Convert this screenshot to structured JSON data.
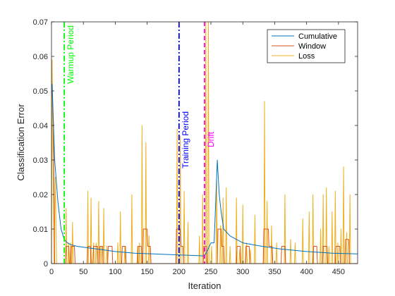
{
  "colors": {
    "cumulative": "#0072BD",
    "window": "#D95319",
    "loss": "#EDB120",
    "warmup": "#00FF00",
    "training": "#0000FF",
    "drift": "#FF00FF",
    "axis": "#262626"
  },
  "chart_data": {
    "type": "line",
    "title": "",
    "xlabel": "Iteration",
    "ylabel": "Classification Error",
    "xlim": [
      0,
      480
    ],
    "ylim": [
      0,
      0.07
    ],
    "xticks": [
      0,
      50,
      100,
      150,
      200,
      250,
      300,
      350,
      400,
      450
    ],
    "yticks": [
      0,
      0.01,
      0.02,
      0.03,
      0.04,
      0.05,
      0.06,
      0.07
    ],
    "grid": false,
    "legend_position": "top-right",
    "series": [
      {
        "name": "Cumulative",
        "points": [
          [
            1,
            0.052
          ],
          [
            5,
            0.03
          ],
          [
            10,
            0.018
          ],
          [
            15,
            0.01
          ],
          [
            20,
            0.007
          ],
          [
            25,
            0.006
          ],
          [
            30,
            0.0055
          ],
          [
            40,
            0.005
          ],
          [
            60,
            0.0045
          ],
          [
            80,
            0.004
          ],
          [
            100,
            0.0035
          ],
          [
            130,
            0.003
          ],
          [
            160,
            0.0028
          ],
          [
            200,
            0.0025
          ],
          [
            230,
            0.0023
          ],
          [
            240,
            0.0022
          ],
          [
            245,
            0.004
          ],
          [
            250,
            0.006
          ],
          [
            255,
            0.006
          ],
          [
            260,
            0.03
          ],
          [
            263,
            0.02
          ],
          [
            266,
            0.015
          ],
          [
            270,
            0.01
          ],
          [
            280,
            0.008
          ],
          [
            300,
            0.006
          ],
          [
            330,
            0.005
          ],
          [
            360,
            0.0042
          ],
          [
            400,
            0.0035
          ],
          [
            440,
            0.003
          ],
          [
            480,
            0.0028
          ]
        ]
      },
      {
        "name": "Window",
        "points": [
          [
            1,
            0.05
          ],
          [
            3,
            0.04
          ],
          [
            5,
            0.0
          ],
          [
            22,
            0.0
          ],
          [
            23,
            0.005
          ],
          [
            27,
            0.005
          ],
          [
            28,
            0.0
          ],
          [
            30,
            0.0
          ],
          [
            31,
            0.005
          ],
          [
            36,
            0.005
          ],
          [
            37,
            0.0
          ],
          [
            56,
            0.0
          ],
          [
            57,
            0.005
          ],
          [
            61,
            0.005
          ],
          [
            62,
            0.0
          ],
          [
            65,
            0.0
          ],
          [
            66,
            0.005
          ],
          [
            72,
            0.005
          ],
          [
            73,
            0.0
          ],
          [
            75,
            0.0
          ],
          [
            76,
            0.005
          ],
          [
            80,
            0.005
          ],
          [
            81,
            0.0
          ],
          [
            88,
            0.0
          ],
          [
            89,
            0.005
          ],
          [
            95,
            0.005
          ],
          [
            96,
            0.0
          ],
          [
            110,
            0.0
          ],
          [
            111,
            0.005
          ],
          [
            116,
            0.005
          ],
          [
            117,
            0.0
          ],
          [
            135,
            0.0
          ],
          [
            136,
            0.005
          ],
          [
            141,
            0.005
          ],
          [
            142,
            0.0
          ],
          [
            143,
            0.0
          ],
          [
            144,
            0.01
          ],
          [
            150,
            0.01
          ],
          [
            151,
            0.005
          ],
          [
            155,
            0.005
          ],
          [
            156,
            0.0
          ],
          [
            195,
            0.0
          ],
          [
            196,
            0.01
          ],
          [
            202,
            0.01
          ],
          [
            203,
            0.005
          ],
          [
            206,
            0.005
          ],
          [
            207,
            0.0
          ],
          [
            238,
            0.0
          ],
          [
            239,
            0.005
          ],
          [
            243,
            0.005
          ],
          [
            244,
            0.0
          ],
          [
            260,
            0.0
          ],
          [
            261,
            0.01
          ],
          [
            266,
            0.01
          ],
          [
            267,
            0.005
          ],
          [
            270,
            0.005
          ],
          [
            271,
            0.0
          ],
          [
            290,
            0.0
          ],
          [
            291,
            0.005
          ],
          [
            296,
            0.005
          ],
          [
            297,
            0.0
          ],
          [
            304,
            0.0
          ],
          [
            305,
            0.005
          ],
          [
            310,
            0.005
          ],
          [
            311,
            0.0
          ],
          [
            332,
            0.0
          ],
          [
            333,
            0.01
          ],
          [
            340,
            0.01
          ],
          [
            341,
            0.005
          ],
          [
            346,
            0.005
          ],
          [
            347,
            0.0
          ],
          [
            360,
            0.0
          ],
          [
            361,
            0.005
          ],
          [
            366,
            0.005
          ],
          [
            367,
            0.0
          ],
          [
            410,
            0.0
          ],
          [
            411,
            0.005
          ],
          [
            416,
            0.005
          ],
          [
            417,
            0.0
          ],
          [
            425,
            0.0
          ],
          [
            426,
            0.005
          ],
          [
            432,
            0.005
          ],
          [
            433,
            0.0
          ],
          [
            445,
            0.0
          ],
          [
            446,
            0.005
          ],
          [
            452,
            0.005
          ],
          [
            453,
            0.0
          ],
          [
            460,
            0.0
          ],
          [
            461,
            0.007
          ],
          [
            466,
            0.007
          ],
          [
            467,
            0.0
          ],
          [
            480,
            0.0
          ]
        ]
      },
      {
        "name": "Loss",
        "points": [
          [
            0,
            0.0
          ],
          [
            1,
            0.059
          ],
          [
            3,
            0.02
          ],
          [
            4,
            0.0
          ],
          [
            6,
            0.025
          ],
          [
            8,
            0.0
          ],
          [
            22,
            0.0
          ],
          [
            23,
            0.016
          ],
          [
            24,
            0.0
          ],
          [
            26,
            0.0
          ],
          [
            27,
            0.006
          ],
          [
            28,
            0.0
          ],
          [
            29,
            0.0
          ],
          [
            30,
            0.006
          ],
          [
            31,
            0.0
          ],
          [
            32,
            0.0
          ],
          [
            33,
            0.012
          ],
          [
            34,
            0.0
          ],
          [
            56,
            0.0
          ],
          [
            57,
            0.021
          ],
          [
            58,
            0.0
          ],
          [
            61,
            0.0
          ],
          [
            62,
            0.019
          ],
          [
            63,
            0.0
          ],
          [
            65,
            0.0
          ],
          [
            66,
            0.006
          ],
          [
            67,
            0.0
          ],
          [
            69,
            0.0
          ],
          [
            70,
            0.006
          ],
          [
            71,
            0.0
          ],
          [
            73,
            0.0
          ],
          [
            74,
            0.018
          ],
          [
            75,
            0.0
          ],
          [
            77,
            0.0
          ],
          [
            78,
            0.005
          ],
          [
            79,
            0.0
          ],
          [
            81,
            0.0
          ],
          [
            82,
            0.016
          ],
          [
            83,
            0.0
          ],
          [
            86,
            0.0
          ],
          [
            87,
            0.005
          ],
          [
            88,
            0.0
          ],
          [
            103,
            0.0
          ],
          [
            104,
            0.006
          ],
          [
            105,
            0.0
          ],
          [
            107,
            0.0
          ],
          [
            108,
            0.015
          ],
          [
            109,
            0.0
          ],
          [
            114,
            0.0
          ],
          [
            115,
            0.005
          ],
          [
            116,
            0.0
          ],
          [
            125,
            0.0
          ],
          [
            126,
            0.02
          ],
          [
            127,
            0.0
          ],
          [
            134,
            0.0
          ],
          [
            135,
            0.005
          ],
          [
            136,
            0.0
          ],
          [
            137,
            0.0
          ],
          [
            138,
            0.006
          ],
          [
            139,
            0.0
          ],
          [
            141,
            0.0
          ],
          [
            142,
            0.04
          ],
          [
            143,
            0.0
          ],
          [
            147,
            0.0
          ],
          [
            148,
            0.035
          ],
          [
            149,
            0.0
          ],
          [
            152,
            0.0
          ],
          [
            153,
            0.008
          ],
          [
            154,
            0.0
          ],
          [
            196,
            0.0
          ],
          [
            197,
            0.039
          ],
          [
            198,
            0.0
          ],
          [
            201,
            0.0
          ],
          [
            202,
            0.037
          ],
          [
            203,
            0.0
          ],
          [
            207,
            0.0
          ],
          [
            208,
            0.021
          ],
          [
            209,
            0.0
          ],
          [
            213,
            0.0
          ],
          [
            214,
            0.012
          ],
          [
            215,
            0.0
          ],
          [
            231,
            0.0
          ],
          [
            232,
            0.008
          ],
          [
            233,
            0.0
          ],
          [
            236,
            0.0
          ],
          [
            237,
            0.02
          ],
          [
            238,
            0.0
          ],
          [
            241,
            0.0
          ],
          [
            242,
            0.07
          ],
          [
            243,
            0.0
          ],
          [
            245,
            0.0
          ],
          [
            246,
            0.07
          ],
          [
            247,
            0.0
          ],
          [
            250,
            0.0
          ],
          [
            251,
            0.005
          ],
          [
            252,
            0.0
          ],
          [
            258,
            0.0
          ],
          [
            259,
            0.024
          ],
          [
            260,
            0.0
          ],
          [
            264,
            0.0
          ],
          [
            265,
            0.011
          ],
          [
            266,
            0.0
          ],
          [
            268,
            0.0
          ],
          [
            269,
            0.019
          ],
          [
            270,
            0.0
          ],
          [
            273,
            0.0
          ],
          [
            274,
            0.022
          ],
          [
            275,
            0.0
          ],
          [
            279,
            0.0
          ],
          [
            280,
            0.005
          ],
          [
            281,
            0.0
          ],
          [
            289,
            0.0
          ],
          [
            290,
            0.019
          ],
          [
            291,
            0.0
          ],
          [
            294,
            0.0
          ],
          [
            295,
            0.004
          ],
          [
            296,
            0.0
          ],
          [
            299,
            0.0
          ],
          [
            300,
            0.017
          ],
          [
            301,
            0.0
          ],
          [
            305,
            0.0
          ],
          [
            306,
            0.006
          ],
          [
            307,
            0.0
          ],
          [
            311,
            0.0
          ],
          [
            312,
            0.004
          ],
          [
            313,
            0.0
          ],
          [
            318,
            0.0
          ],
          [
            319,
            0.014
          ],
          [
            320,
            0.0
          ],
          [
            333,
            0.0
          ],
          [
            334,
            0.047
          ],
          [
            335,
            0.0
          ],
          [
            337,
            0.0
          ],
          [
            338,
            0.018
          ],
          [
            339,
            0.0
          ],
          [
            344,
            0.0
          ],
          [
            345,
            0.011
          ],
          [
            346,
            0.0
          ],
          [
            352,
            0.0
          ],
          [
            353,
            0.006
          ],
          [
            354,
            0.0
          ],
          [
            365,
            0.0
          ],
          [
            366,
            0.02
          ],
          [
            367,
            0.0
          ],
          [
            374,
            0.0
          ],
          [
            375,
            0.007
          ],
          [
            376,
            0.0
          ],
          [
            381,
            0.0
          ],
          [
            382,
            0.006
          ],
          [
            383,
            0.0
          ],
          [
            393,
            0.0
          ],
          [
            394,
            0.013
          ],
          [
            395,
            0.0
          ],
          [
            403,
            0.0
          ],
          [
            404,
            0.015
          ],
          [
            405,
            0.0
          ],
          [
            409,
            0.0
          ],
          [
            410,
            0.02
          ],
          [
            411,
            0.0
          ],
          [
            421,
            0.0
          ],
          [
            422,
            0.01
          ],
          [
            423,
            0.0
          ],
          [
            425,
            0.0
          ],
          [
            426,
            0.02
          ],
          [
            427,
            0.0
          ],
          [
            430,
            0.0
          ],
          [
            431,
            0.022
          ],
          [
            432,
            0.0
          ],
          [
            434,
            0.0
          ],
          [
            435,
            0.005
          ],
          [
            436,
            0.0
          ],
          [
            439,
            0.0
          ],
          [
            440,
            0.015
          ],
          [
            441,
            0.0
          ],
          [
            444,
            0.0
          ],
          [
            445,
            0.021
          ],
          [
            446,
            0.0
          ],
          [
            448,
            0.0
          ],
          [
            449,
            0.006
          ],
          [
            450,
            0.0
          ],
          [
            453,
            0.0
          ],
          [
            454,
            0.01
          ],
          [
            455,
            0.0
          ],
          [
            457,
            0.0
          ],
          [
            458,
            0.028
          ],
          [
            459,
            0.0
          ],
          [
            462,
            0.0
          ],
          [
            463,
            0.009
          ],
          [
            464,
            0.0
          ],
          [
            467,
            0.0
          ],
          [
            468,
            0.02
          ],
          [
            469,
            0.0
          ],
          [
            480,
            0.0
          ]
        ]
      }
    ],
    "vlines": [
      {
        "x": 20,
        "label": "Warmup Period",
        "color_key": "warmup",
        "style": "dashdot"
      },
      {
        "x": 200,
        "label": "Training Period",
        "color_key": "training",
        "style": "dashdot"
      },
      {
        "x": 240,
        "label": "Drift",
        "color_key": "drift",
        "style": "dashed"
      }
    ]
  }
}
